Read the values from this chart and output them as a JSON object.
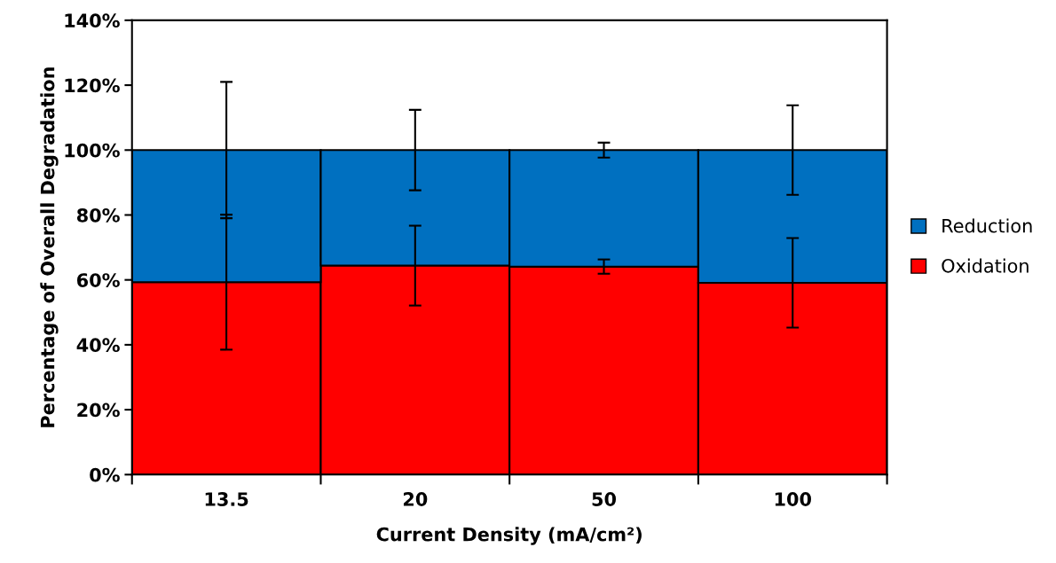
{
  "chart_data": {
    "type": "bar",
    "stacked": true,
    "xlabel": "Current Density (mA/cm²)",
    "ylabel": "Percentage of Overall Degradation",
    "categories": [
      "13.5",
      "20",
      "50",
      "100"
    ],
    "series": [
      {
        "name": "Oxidation",
        "color": "#ff0000",
        "values": [
          59.3,
          64.4,
          64.1,
          59.1
        ],
        "errors": [
          20.8,
          12.3,
          2.2,
          13.8
        ]
      },
      {
        "name": "Reduction",
        "color": "#0070c0",
        "values": [
          40.7,
          35.6,
          35.9,
          40.9
        ],
        "errors": [
          21,
          12.4,
          2.3,
          13.8
        ]
      }
    ],
    "ylim": [
      0,
      140
    ],
    "yticks": [
      {
        "value": 0,
        "label": "0%"
      },
      {
        "value": 20,
        "label": "20%"
      },
      {
        "value": 40,
        "label": "40%"
      },
      {
        "value": 60,
        "label": "60%"
      },
      {
        "value": 80,
        "label": "80%"
      },
      {
        "value": 100,
        "label": "100%"
      },
      {
        "value": 120,
        "label": "120%"
      },
      {
        "value": 140,
        "label": "140%"
      }
    ],
    "grid": false,
    "legend": "right"
  }
}
